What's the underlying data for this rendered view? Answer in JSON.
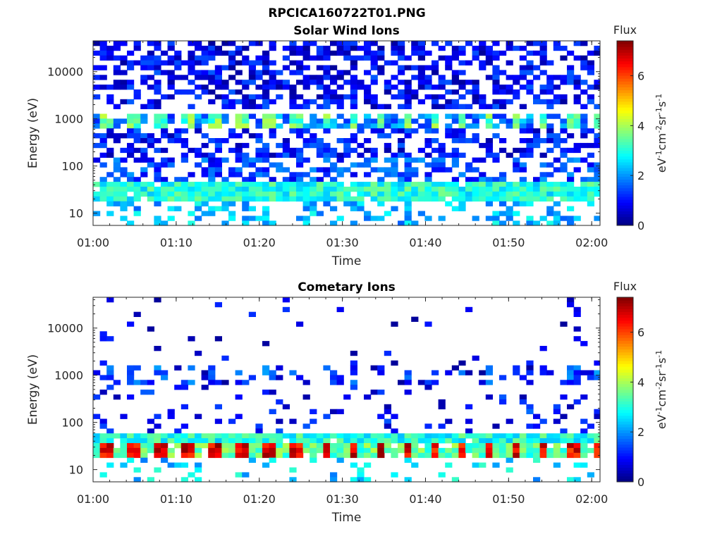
{
  "figure_title": "RPCICA160722T01.PNG",
  "chart_data": [
    {
      "type": "heatmap",
      "title": "Solar Wind Ions",
      "xlabel": "Time",
      "ylabel": "Energy (eV)",
      "y_scale": "log",
      "ylim": [
        5.5,
        45000
      ],
      "xlim": [
        "01:00",
        "02:01"
      ],
      "x_ticks": [
        "01:00",
        "01:10",
        "01:20",
        "01:30",
        "01:40",
        "01:50",
        "02:00"
      ],
      "y_ticks": [
        "10",
        "100",
        "1000",
        "10000"
      ],
      "colorbar": {
        "title": "Flux",
        "label": "eV-1cm-2sr-1s-1",
        "range": [
          0,
          7.4
        ],
        "ticks": [
          "0",
          "2",
          "4",
          "6"
        ],
        "colormap": "jet"
      },
      "rows": [
        {
          "energy_range": [
            10000,
            45000
          ],
          "typical_flux": 0.8,
          "fill_fraction": 0.55
        },
        {
          "energy_range": [
            1500,
            10000
          ],
          "typical_flux": 0.9,
          "fill_fraction": 0.5
        },
        {
          "energy_range": [
            700,
            1200
          ],
          "typical_flux": 2.8,
          "fill_fraction": 0.6,
          "periodic_minutes": 3.3
        },
        {
          "energy_range": [
            150,
            700
          ],
          "typical_flux": 1.0,
          "fill_fraction": 0.45
        },
        {
          "energy_range": [
            45,
            150
          ],
          "typical_flux": 1.4,
          "fill_fraction": 0.45
        },
        {
          "energy_range": [
            20,
            45
          ],
          "typical_flux": 3.0,
          "fill_fraction": 0.95
        },
        {
          "energy_range": [
            5.5,
            20
          ],
          "typical_flux": 2.3,
          "fill_fraction": 0.35
        }
      ]
    },
    {
      "type": "heatmap",
      "title": "Cometary Ions",
      "xlabel": "Time",
      "ylabel": "Energy (eV)",
      "y_scale": "log",
      "ylim": [
        5.5,
        45000
      ],
      "xlim": [
        "01:00",
        "02:01"
      ],
      "x_ticks": [
        "01:00",
        "01:10",
        "01:20",
        "01:30",
        "01:40",
        "01:50",
        "02:00"
      ],
      "y_ticks": [
        "10",
        "100",
        "1000",
        "10000"
      ],
      "colorbar": {
        "title": "Flux",
        "label": "eV-1cm-2sr-1s-1",
        "range": [
          0,
          7.4
        ],
        "ticks": [
          "0",
          "2",
          "4",
          "6"
        ],
        "colormap": "jet"
      },
      "rows": [
        {
          "energy_range": [
            1500,
            45000
          ],
          "typical_flux": 0.6,
          "fill_fraction": 0.04
        },
        {
          "energy_range": [
            600,
            1500
          ],
          "typical_flux": 1.2,
          "fill_fraction": 0.2,
          "periodic_minutes": 3.3
        },
        {
          "energy_range": [
            60,
            600
          ],
          "typical_flux": 1.0,
          "fill_fraction": 0.12
        },
        {
          "energy_range": [
            40,
            60
          ],
          "typical_flux": 3.0,
          "fill_fraction": 0.95
        },
        {
          "energy_range": [
            20,
            40
          ],
          "typical_flux": 5.3,
          "fill_fraction": 0.9,
          "periodic_minutes": 3.3
        },
        {
          "energy_range": [
            5.5,
            20
          ],
          "typical_flux": 2.5,
          "fill_fraction": 0.2
        }
      ]
    }
  ]
}
